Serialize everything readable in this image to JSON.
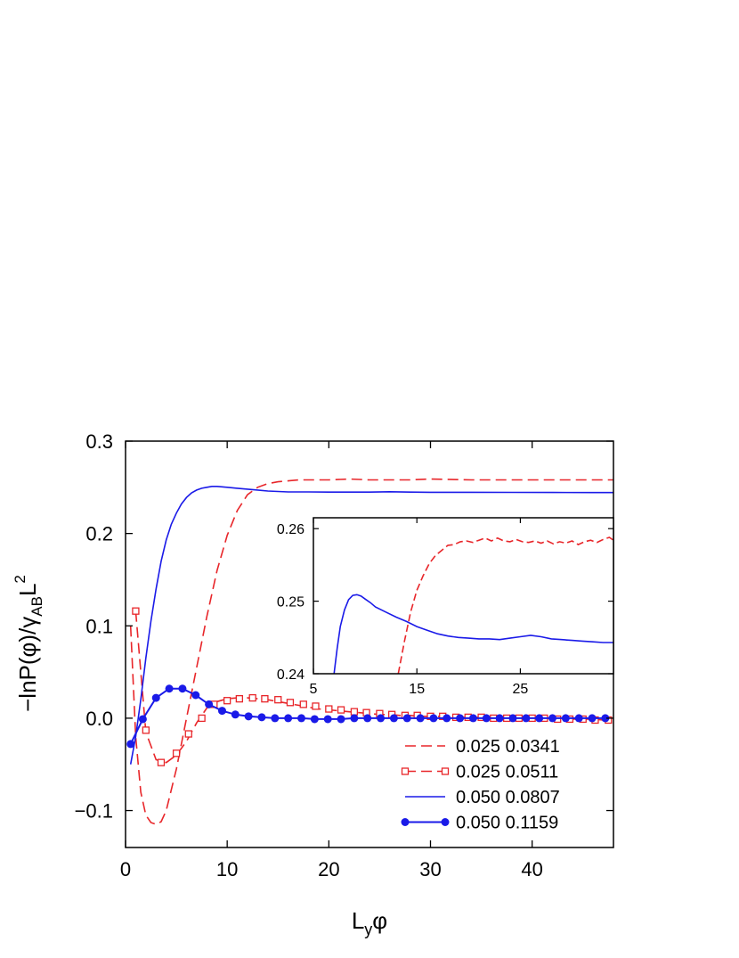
{
  "chart_data": {
    "type": "line",
    "xlabel": {
      "main": "L",
      "sub": "y",
      "tail": "φ"
    },
    "ylabel": {
      "pre": "−lnP(φ)/γ",
      "sub": "AB",
      "mid": "L",
      "sup": "2"
    },
    "xlim": [
      0,
      48
    ],
    "ylim": [
      -0.14,
      0.3
    ],
    "x_ticks": [
      0,
      10,
      20,
      30,
      40
    ],
    "y_ticks": [
      -0.1,
      0.0,
      0.1,
      0.2,
      0.3
    ],
    "x_tick_labels": [
      "0",
      "10",
      "20",
      "30",
      "40"
    ],
    "y_tick_labels": [
      "−0.1",
      "0.0",
      "0.1",
      "0.2",
      "0.3"
    ],
    "grid": false,
    "legend_position": "bottom-right",
    "series": [
      {
        "name": "0.025 0.0341",
        "color": "#e8262a",
        "style": "dashed",
        "marker": "none",
        "x": [
          0.5,
          1.0,
          1.5,
          2.0,
          2.5,
          3.0,
          3.5,
          4.0,
          5.0,
          6.0,
          7.0,
          8.0,
          9.0,
          10.0,
          11.0,
          12.0,
          13.0,
          14.0,
          15.0,
          16.0,
          17.0,
          18.0,
          20.0,
          22.0,
          24.0,
          26.0,
          28.0,
          30.0,
          34.0,
          38.0,
          42.0,
          46.0,
          48.0
        ],
        "y": [
          0.1,
          -0.02,
          -0.08,
          -0.105,
          -0.113,
          -0.115,
          -0.112,
          -0.1,
          -0.055,
          0.0,
          0.055,
          0.11,
          0.16,
          0.198,
          0.225,
          0.242,
          0.25,
          0.254,
          0.256,
          0.257,
          0.258,
          0.258,
          0.258,
          0.259,
          0.258,
          0.258,
          0.258,
          0.259,
          0.258,
          0.258,
          0.258,
          0.258,
          0.258
        ]
      },
      {
        "name": "0.025 0.0511",
        "color": "#e8262a",
        "style": "dashed",
        "marker": "open-square",
        "x": [
          1.0,
          2.0,
          3.0,
          4.0,
          5.0,
          6.0,
          7.0,
          8.0,
          9.0,
          10.0,
          11.0,
          12.0,
          13.0,
          14.0,
          15.0,
          16.0,
          17.0,
          18.0,
          19.0,
          20.0,
          21.0,
          22.0,
          23.0,
          24.0,
          25.0,
          26.0,
          27.0,
          28.0,
          29.0,
          30.0,
          31.0,
          32.0,
          33.0,
          34.0,
          35.0,
          36.0,
          37.0,
          38.0,
          39.0,
          40.0,
          41.0,
          42.0,
          43.0,
          44.0,
          45.0,
          46.0,
          47.0,
          48.0
        ],
        "markers_x": [
          1.0,
          2.0,
          3.5,
          5.0,
          6.2,
          7.5,
          8.7,
          10.0,
          11.2,
          12.5,
          13.7,
          15.0,
          16.2,
          17.5,
          18.7,
          20.0,
          21.2,
          22.5,
          23.7,
          25.0,
          26.2,
          27.5,
          28.7,
          30.0,
          31.2,
          32.5,
          33.7,
          35.0,
          36.2,
          37.5,
          38.7,
          40.0,
          41.2,
          42.5,
          43.7,
          45.0,
          46.2,
          47.5
        ],
        "y": [
          0.116,
          -0.015,
          -0.045,
          -0.048,
          -0.04,
          -0.025,
          -0.005,
          0.011,
          0.018,
          0.021,
          0.022,
          0.022,
          0.021,
          0.02,
          0.018,
          0.016,
          0.014,
          0.012,
          0.01,
          0.009,
          0.008,
          0.007,
          0.006,
          0.005,
          0.004,
          0.004,
          0.003,
          0.003,
          0.002,
          0.002,
          0.002,
          0.001,
          0.001,
          0.001,
          0.001,
          0.0,
          0.0,
          0.0,
          0.0,
          0.0,
          0.0,
          0.0,
          -0.001,
          -0.001,
          -0.001,
          -0.001,
          -0.002,
          -0.002
        ],
        "markers_y": [
          0.116,
          -0.013,
          -0.048,
          -0.038,
          -0.017,
          0.0,
          0.015,
          0.019,
          0.021,
          0.022,
          0.021,
          0.02,
          0.017,
          0.015,
          0.013,
          0.01,
          0.009,
          0.007,
          0.006,
          0.005,
          0.004,
          0.003,
          0.003,
          0.002,
          0.002,
          0.001,
          0.001,
          0.001,
          0.0,
          0.0,
          0.0,
          0.0,
          0.0,
          -0.001,
          -0.001,
          -0.001,
          -0.002,
          -0.002
        ]
      },
      {
        "name": "0.050 0.0807",
        "color": "#1a1ae8",
        "style": "solid",
        "marker": "none",
        "x": [
          0.5,
          1.0,
          1.5,
          2.0,
          2.5,
          3.0,
          3.5,
          4.0,
          4.5,
          5.0,
          5.5,
          6.0,
          6.5,
          7.0,
          7.5,
          8.0,
          8.5,
          9.0,
          9.5,
          10.0,
          11.0,
          12.0,
          13.0,
          14.0,
          15.0,
          16.0,
          18.0,
          20.0,
          22.0,
          24.0,
          26.0,
          28.0,
          30.0,
          34.0,
          38.0,
          42.0,
          46.0,
          48.0
        ],
        "y": [
          -0.05,
          -0.02,
          0.02,
          0.065,
          0.105,
          0.14,
          0.17,
          0.193,
          0.21,
          0.222,
          0.232,
          0.239,
          0.244,
          0.247,
          0.249,
          0.25,
          0.251,
          0.251,
          0.2505,
          0.25,
          0.249,
          0.248,
          0.247,
          0.246,
          0.2455,
          0.245,
          0.245,
          0.2448,
          0.2448,
          0.2448,
          0.2452,
          0.2448,
          0.2446,
          0.2446,
          0.2445,
          0.2444,
          0.2443,
          0.2443
        ]
      },
      {
        "name": "0.050 0.1159",
        "color": "#1a1ae8",
        "style": "solid",
        "marker": "filled-circle",
        "x": [
          0.5,
          1.7,
          3.0,
          4.3,
          5.6,
          6.9,
          8.2,
          9.5,
          10.8,
          12.1,
          13.4,
          14.7,
          16.0,
          17.3,
          18.6,
          19.9,
          21.2,
          22.5,
          23.8,
          25.1,
          26.4,
          27.7,
          29.0,
          30.3,
          31.6,
          32.9,
          34.2,
          35.5,
          36.8,
          38.1,
          39.4,
          40.7,
          42.0,
          43.3,
          44.6,
          45.9,
          47.2
        ],
        "y": [
          -0.028,
          -0.001,
          0.022,
          0.032,
          0.032,
          0.025,
          0.015,
          0.008,
          0.004,
          0.002,
          0.001,
          0.0,
          0.0,
          0.0,
          -0.001,
          -0.001,
          -0.001,
          0.0,
          0.0,
          0.0,
          0.0,
          0.0,
          0.0,
          0.0,
          0.0,
          0.0,
          0.0,
          0.0,
          0.0,
          0.0,
          0.0,
          0.0,
          0.0,
          0.0,
          0.0,
          0.0,
          0.0
        ]
      }
    ],
    "inset": {
      "xlim": [
        5,
        34
      ],
      "ylim": [
        0.24,
        0.2615
      ],
      "x_ticks": [
        5,
        15,
        25
      ],
      "y_ticks": [
        0.24,
        0.25,
        0.26
      ],
      "x_tick_labels": [
        "5",
        "15",
        "25"
      ],
      "y_tick_labels": [
        "0.24",
        "0.25",
        "0.26"
      ],
      "series": [
        {
          "name": "0.025 0.0341",
          "color": "#e8262a",
          "style": "dashed",
          "x": [
            13.2,
            13.8,
            14.4,
            15.0,
            15.6,
            16.2,
            16.8,
            17.4,
            18.0,
            18.6,
            19.2,
            19.8,
            20.4,
            21.0,
            21.6,
            22.2,
            22.8,
            23.4,
            24.0,
            24.6,
            25.2,
            25.8,
            26.4,
            27.0,
            27.6,
            28.2,
            28.8,
            29.4,
            30.0,
            30.6,
            31.2,
            31.8,
            32.4,
            33.0,
            33.6,
            34.0
          ],
          "y": [
            0.24,
            0.2445,
            0.2485,
            0.2515,
            0.2535,
            0.2552,
            0.2563,
            0.257,
            0.2577,
            0.2578,
            0.2582,
            0.2583,
            0.2581,
            0.2584,
            0.2587,
            0.2583,
            0.2587,
            0.2583,
            0.2582,
            0.2585,
            0.2582,
            0.2581,
            0.2583,
            0.258,
            0.2583,
            0.2579,
            0.2582,
            0.258,
            0.2583,
            0.2578,
            0.2582,
            0.2584,
            0.2581,
            0.2585,
            0.2588,
            0.2584
          ]
        },
        {
          "name": "0.050 0.0807",
          "color": "#1a1ae8",
          "style": "solid",
          "x": [
            7.0,
            7.3,
            7.6,
            8.0,
            8.4,
            8.8,
            9.2,
            9.6,
            10.0,
            10.5,
            11.0,
            12.0,
            13.0,
            14.0,
            15.0,
            16.0,
            17.0,
            18.0,
            19.0,
            20.0,
            21.0,
            22.0,
            23.0,
            24.0,
            25.0,
            26.0,
            27.0,
            28.0,
            29.0,
            30.0,
            31.0,
            32.0,
            33.0,
            34.0
          ],
          "y": [
            0.24,
            0.2435,
            0.2465,
            0.2488,
            0.2502,
            0.2508,
            0.2509,
            0.2507,
            0.2503,
            0.2498,
            0.2492,
            0.2485,
            0.2478,
            0.2472,
            0.2465,
            0.246,
            0.2455,
            0.2452,
            0.245,
            0.2449,
            0.2448,
            0.2448,
            0.2447,
            0.2449,
            0.2451,
            0.2453,
            0.2451,
            0.2448,
            0.2447,
            0.2446,
            0.2445,
            0.2444,
            0.2443,
            0.2443
          ]
        }
      ]
    }
  }
}
